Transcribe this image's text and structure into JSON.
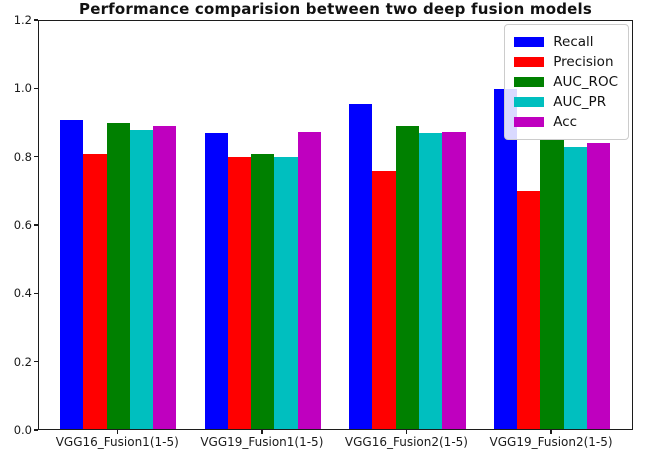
{
  "chart_data": {
    "type": "bar",
    "title": "Performance comparision between two deep fusion models",
    "categories": [
      "VGG16_Fusion1(1-5)",
      "VGG19_Fusion1(1-5)",
      "VGG16_Fusion2(1-5)",
      "VGG19_Fusion2(1-5)"
    ],
    "series": [
      {
        "name": "Recall",
        "color": "#0000ff",
        "values": [
          0.91,
          0.87,
          0.955,
          1.0
        ]
      },
      {
        "name": "Precision",
        "color": "#ff0000",
        "values": [
          0.81,
          0.8,
          0.76,
          0.7
        ]
      },
      {
        "name": "AUC_ROC",
        "color": "#008000",
        "values": [
          0.9,
          0.81,
          0.89,
          0.85
        ]
      },
      {
        "name": "AUC_PR",
        "color": "#00bfbf",
        "values": [
          0.88,
          0.8,
          0.87,
          0.83
        ]
      },
      {
        "name": "Acc",
        "color": "#bf00bf",
        "values": [
          0.89,
          0.875,
          0.875,
          0.84
        ]
      }
    ],
    "xlabel": "",
    "ylabel": "",
    "ylim": [
      0,
      1.2
    ],
    "yticks": [
      "0.0",
      "0.2",
      "0.4",
      "0.6",
      "0.8",
      "1.0",
      "1.2"
    ],
    "grid": false,
    "legend_position": "upper right"
  }
}
